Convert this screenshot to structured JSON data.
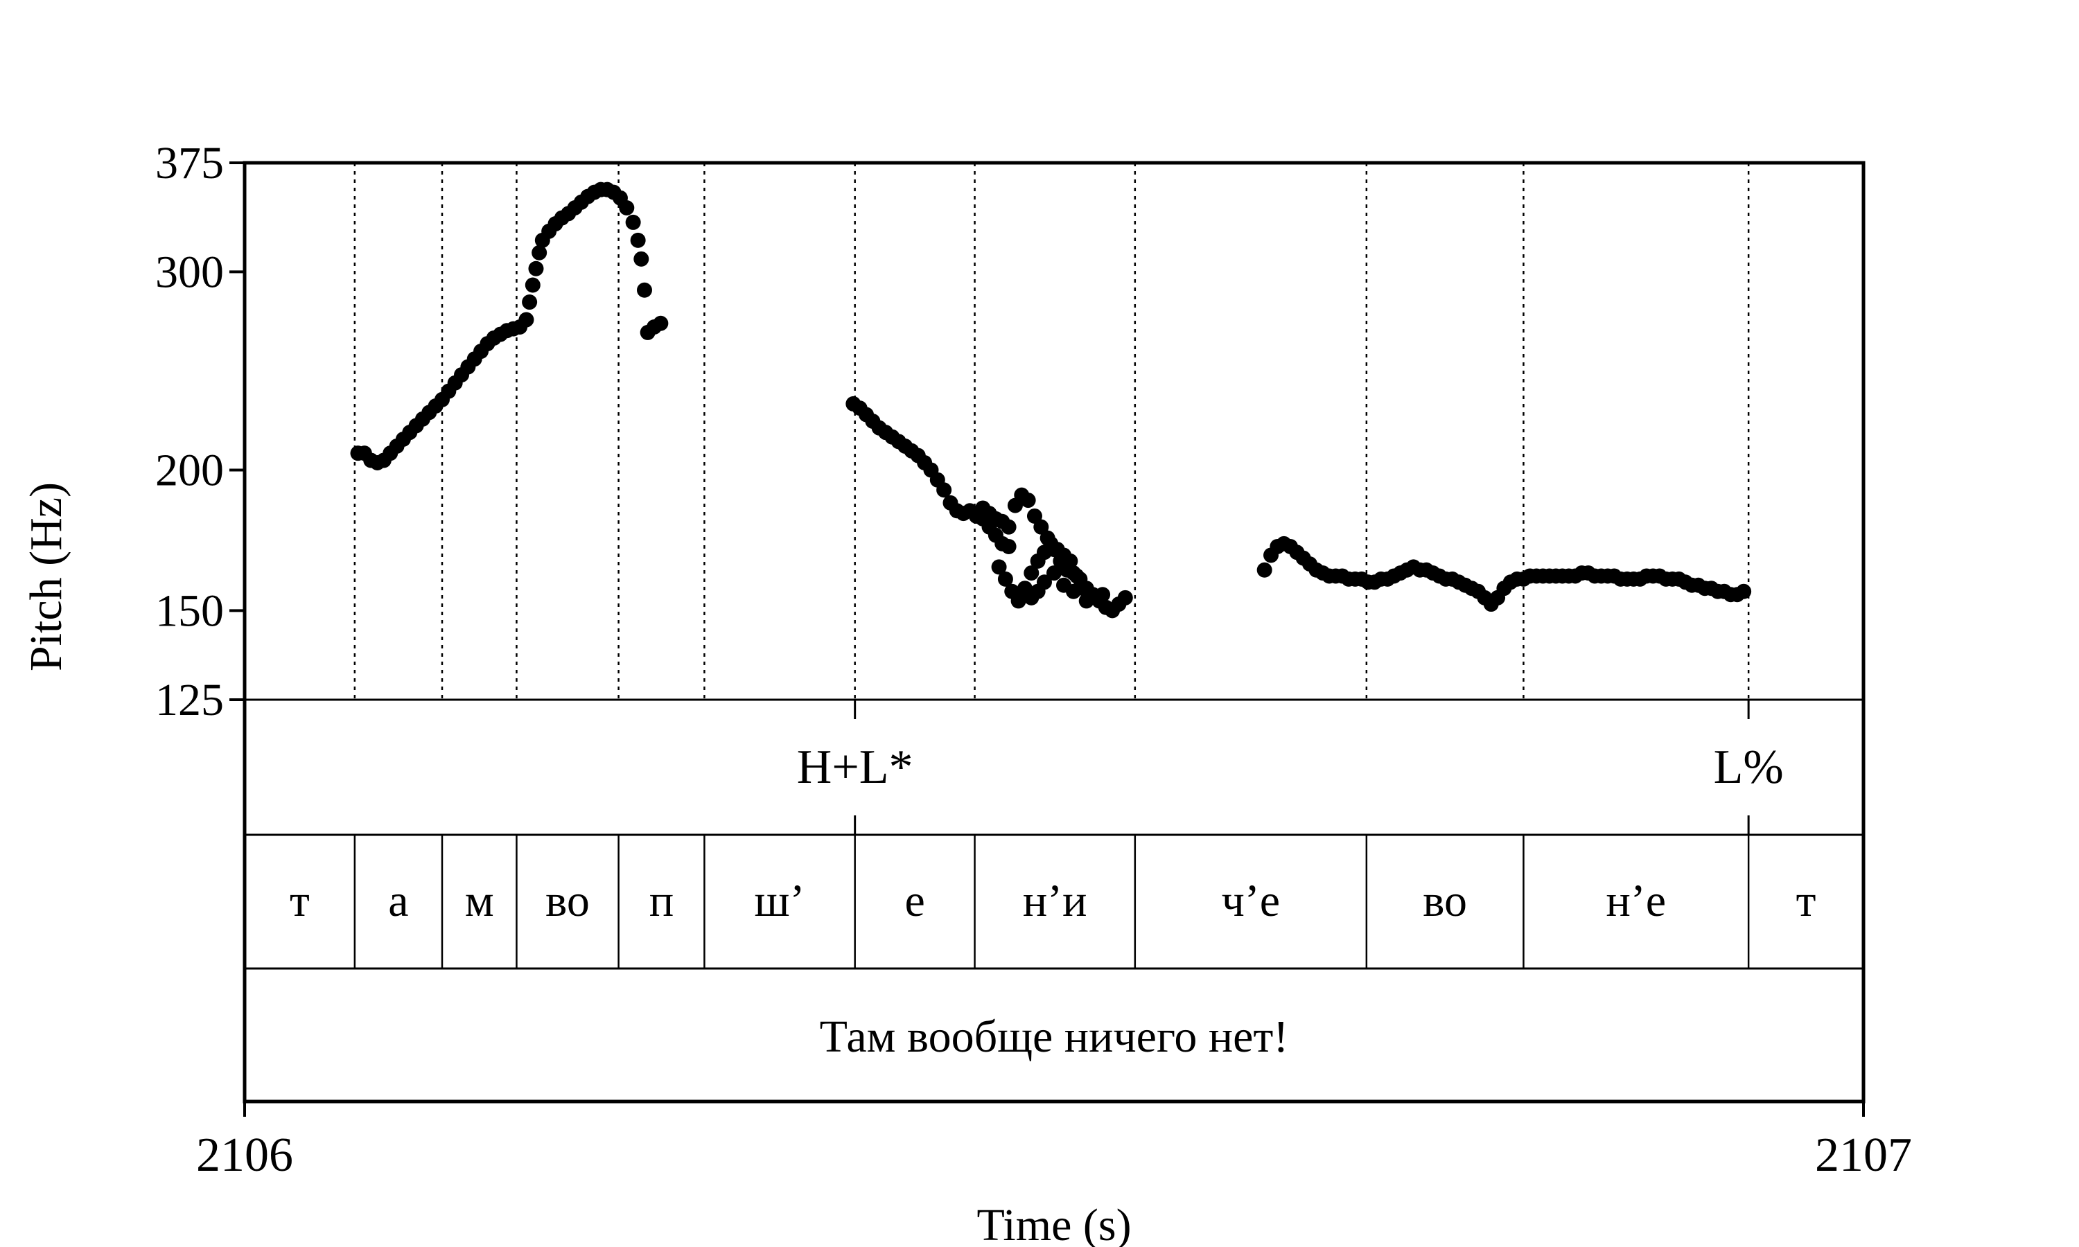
{
  "chart_data": {
    "type": "scatter",
    "title": "",
    "xlabel": "Time (s)",
    "ylabel": "Pitch (Hz)",
    "xlim": [
      2106,
      2107
    ],
    "ylim": [
      125,
      375
    ],
    "y_scale": "log",
    "x_ticks": [
      "2106",
      "2107"
    ],
    "y_ticks": [
      125,
      150,
      200,
      300,
      375
    ],
    "grid": false,
    "point_color": "#000000",
    "segment_boundaries": [
      2106.068,
      2106.122,
      2106.168,
      2106.231,
      2106.284,
      2106.377,
      2106.451,
      2106.55,
      2106.693,
      2106.79,
      2106.929
    ],
    "tone_tier": [
      {
        "label": "H+L*",
        "time": 2106.377
      },
      {
        "label": "L%",
        "time": 2106.929
      }
    ],
    "segment_tier": [
      {
        "label": "т",
        "start": 2106.0,
        "end": 2106.068
      },
      {
        "label": "а",
        "start": 2106.068,
        "end": 2106.122
      },
      {
        "label": "м",
        "start": 2106.122,
        "end": 2106.168
      },
      {
        "label": "во",
        "start": 2106.168,
        "end": 2106.231
      },
      {
        "label": "п",
        "start": 2106.231,
        "end": 2106.284
      },
      {
        "label": "ш’",
        "start": 2106.284,
        "end": 2106.377
      },
      {
        "label": "е",
        "start": 2106.377,
        "end": 2106.451
      },
      {
        "label": "н’и",
        "start": 2106.451,
        "end": 2106.55
      },
      {
        "label": "ч’е",
        "start": 2106.55,
        "end": 2106.693
      },
      {
        "label": "во",
        "start": 2106.693,
        "end": 2106.79
      },
      {
        "label": "н’е",
        "start": 2106.79,
        "end": 2106.929
      },
      {
        "label": "т",
        "start": 2106.929,
        "end": 2107.0
      }
    ],
    "sentence_tier": {
      "label": "Там вообще ничего нет!",
      "start": 2106.0,
      "end": 2107.0
    },
    "series": [
      {
        "points": [
          [
            2106.07,
            207
          ],
          [
            2106.074,
            207
          ],
          [
            2106.078,
            204
          ],
          [
            2106.082,
            203
          ],
          [
            2106.086,
            204
          ],
          [
            2106.09,
            207
          ],
          [
            2106.094,
            210
          ],
          [
            2106.098,
            213
          ],
          [
            2106.102,
            216
          ],
          [
            2106.106,
            219
          ],
          [
            2106.11,
            222
          ],
          [
            2106.114,
            225
          ],
          [
            2106.118,
            228
          ],
          [
            2106.122,
            231
          ],
          [
            2106.126,
            235
          ],
          [
            2106.13,
            239
          ],
          [
            2106.134,
            243
          ],
          [
            2106.138,
            247
          ],
          [
            2106.142,
            251
          ],
          [
            2106.146,
            255
          ],
          [
            2106.15,
            259
          ],
          [
            2106.154,
            262
          ],
          [
            2106.158,
            264
          ],
          [
            2106.162,
            266
          ],
          [
            2106.166,
            267
          ],
          [
            2106.17,
            268
          ],
          [
            2106.174,
            272
          ],
          [
            2106.176,
            282
          ],
          [
            2106.178,
            292
          ],
          [
            2106.18,
            302
          ],
          [
            2106.182,
            312
          ],
          [
            2106.184,
            320
          ],
          [
            2106.188,
            326
          ],
          [
            2106.192,
            331
          ],
          [
            2106.196,
            335
          ],
          [
            2106.2,
            338
          ],
          [
            2106.204,
            342
          ],
          [
            2106.208,
            346
          ],
          [
            2106.212,
            350
          ],
          [
            2106.216,
            353
          ],
          [
            2106.22,
            355
          ],
          [
            2106.224,
            355
          ],
          [
            2106.228,
            353
          ],
          [
            2106.232,
            349
          ],
          [
            2106.236,
            342
          ],
          [
            2106.24,
            332
          ],
          [
            2106.243,
            320
          ],
          [
            2106.245,
            308
          ],
          [
            2106.247,
            289
          ],
          [
            2106.249,
            265
          ],
          [
            2106.253,
            268
          ],
          [
            2106.257,
            270
          ]
        ]
      },
      {
        "points": [
          [
            2106.376,
            229
          ],
          [
            2106.38,
            227
          ],
          [
            2106.384,
            224
          ],
          [
            2106.388,
            221
          ],
          [
            2106.392,
            218
          ],
          [
            2106.396,
            216
          ],
          [
            2106.4,
            214
          ],
          [
            2106.404,
            212
          ],
          [
            2106.408,
            210
          ],
          [
            2106.412,
            208
          ],
          [
            2106.416,
            206
          ],
          [
            2106.42,
            203
          ],
          [
            2106.424,
            200
          ],
          [
            2106.428,
            196
          ],
          [
            2106.432,
            192
          ],
          [
            2106.436,
            187
          ],
          [
            2106.44,
            184
          ],
          [
            2106.444,
            183
          ],
          [
            2106.448,
            184
          ],
          [
            2106.452,
            182
          ],
          [
            2106.456,
            181
          ],
          [
            2106.46,
            178
          ],
          [
            2106.464,
            175
          ],
          [
            2106.468,
            172
          ],
          [
            2106.472,
            171
          ],
          [
            2106.476,
            186
          ],
          [
            2106.48,
            190
          ],
          [
            2106.484,
            188
          ],
          [
            2106.488,
            182
          ],
          [
            2106.492,
            178
          ],
          [
            2106.496,
            174
          ],
          [
            2106.5,
            170
          ],
          [
            2106.504,
            166
          ],
          [
            2106.508,
            163
          ],
          [
            2106.512,
            162
          ],
          [
            2106.516,
            160
          ],
          [
            2106.52,
            157
          ],
          [
            2106.524,
            155
          ],
          [
            2106.528,
            153
          ],
          [
            2106.532,
            151
          ],
          [
            2106.536,
            150
          ],
          [
            2106.54,
            152
          ],
          [
            2106.544,
            154
          ],
          [
            2106.466,
            164
          ],
          [
            2106.47,
            160
          ],
          [
            2106.474,
            156
          ],
          [
            2106.478,
            153
          ],
          [
            2106.482,
            157
          ],
          [
            2106.486,
            162
          ],
          [
            2106.49,
            166
          ],
          [
            2106.494,
            169
          ],
          [
            2106.498,
            172
          ],
          [
            2106.502,
            170
          ],
          [
            2106.506,
            168
          ],
          [
            2106.51,
            166
          ],
          [
            2106.514,
            161
          ],
          [
            2106.518,
            157
          ],
          [
            2106.456,
            185
          ],
          [
            2106.46,
            183
          ],
          [
            2106.464,
            181
          ],
          [
            2106.468,
            180
          ],
          [
            2106.472,
            178
          ],
          [
            2106.486,
            154
          ],
          [
            2106.49,
            156
          ],
          [
            2106.494,
            159
          ],
          [
            2106.5,
            162
          ],
          [
            2106.506,
            158
          ],
          [
            2106.512,
            156
          ],
          [
            2106.52,
            153
          ],
          [
            2106.53,
            155
          ]
        ]
      },
      {
        "points": [
          [
            2106.63,
            163
          ],
          [
            2106.634,
            168
          ],
          [
            2106.638,
            171
          ],
          [
            2106.642,
            172
          ],
          [
            2106.646,
            171
          ],
          [
            2106.65,
            169
          ],
          [
            2106.654,
            167
          ],
          [
            2106.658,
            165
          ],
          [
            2106.662,
            163
          ],
          [
            2106.666,
            162
          ],
          [
            2106.67,
            161
          ],
          [
            2106.674,
            161
          ],
          [
            2106.678,
            161
          ],
          [
            2106.682,
            160
          ],
          [
            2106.686,
            160
          ],
          [
            2106.69,
            160
          ],
          [
            2106.694,
            159
          ],
          [
            2106.698,
            159
          ],
          [
            2106.702,
            160
          ],
          [
            2106.706,
            160
          ],
          [
            2106.71,
            161
          ],
          [
            2106.714,
            162
          ],
          [
            2106.718,
            163
          ],
          [
            2106.722,
            164
          ],
          [
            2106.726,
            163
          ],
          [
            2106.73,
            163
          ],
          [
            2106.734,
            162
          ],
          [
            2106.738,
            161
          ],
          [
            2106.742,
            160
          ],
          [
            2106.746,
            160
          ],
          [
            2106.75,
            159
          ],
          [
            2106.754,
            158
          ],
          [
            2106.758,
            157
          ],
          [
            2106.762,
            156
          ],
          [
            2106.766,
            154
          ],
          [
            2106.77,
            152
          ],
          [
            2106.774,
            154
          ],
          [
            2106.778,
            157
          ],
          [
            2106.782,
            159
          ],
          [
            2106.786,
            160
          ],
          [
            2106.79,
            160
          ],
          [
            2106.794,
            161
          ],
          [
            2106.798,
            161
          ],
          [
            2106.802,
            161
          ],
          [
            2106.806,
            161
          ],
          [
            2106.81,
            161
          ],
          [
            2106.814,
            161
          ],
          [
            2106.818,
            161
          ],
          [
            2106.822,
            161
          ],
          [
            2106.826,
            162
          ],
          [
            2106.83,
            162
          ],
          [
            2106.834,
            161
          ],
          [
            2106.838,
            161
          ],
          [
            2106.842,
            161
          ],
          [
            2106.846,
            161
          ],
          [
            2106.85,
            160
          ],
          [
            2106.854,
            160
          ],
          [
            2106.858,
            160
          ],
          [
            2106.862,
            160
          ],
          [
            2106.866,
            161
          ],
          [
            2106.87,
            161
          ],
          [
            2106.874,
            161
          ],
          [
            2106.878,
            160
          ],
          [
            2106.882,
            160
          ],
          [
            2106.886,
            160
          ],
          [
            2106.89,
            159
          ],
          [
            2106.894,
            158
          ],
          [
            2106.898,
            158
          ],
          [
            2106.902,
            157
          ],
          [
            2106.906,
            157
          ],
          [
            2106.91,
            156
          ],
          [
            2106.914,
            156
          ],
          [
            2106.918,
            155
          ],
          [
            2106.922,
            155
          ],
          [
            2106.926,
            156
          ]
        ]
      }
    ]
  }
}
